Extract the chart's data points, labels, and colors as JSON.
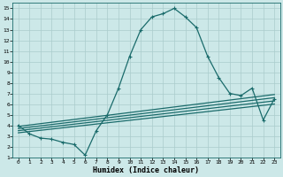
{
  "xlabel": "Humidex (Indice chaleur)",
  "xlim": [
    -0.5,
    23.5
  ],
  "ylim": [
    1,
    15.5
  ],
  "yticks": [
    1,
    2,
    3,
    4,
    5,
    6,
    7,
    8,
    9,
    10,
    11,
    12,
    13,
    14,
    15
  ],
  "xticks": [
    0,
    1,
    2,
    3,
    4,
    5,
    6,
    7,
    8,
    9,
    10,
    11,
    12,
    13,
    14,
    15,
    16,
    17,
    18,
    19,
    20,
    21,
    22,
    23
  ],
  "bg_color": "#cce8e8",
  "grid_color": "#aacccc",
  "line_color": "#1a6b6b",
  "line_width": 0.9,
  "marker": "+",
  "marker_size": 3.5,
  "lines": [
    {
      "x": [
        0,
        1,
        2,
        3,
        4,
        5,
        6,
        7,
        8,
        9,
        10,
        11,
        12,
        13,
        14,
        15,
        16,
        17,
        18,
        19,
        20,
        21,
        22,
        23
      ],
      "y": [
        4.0,
        3.2,
        2.8,
        2.7,
        2.4,
        2.2,
        1.2,
        3.5,
        5.0,
        7.5,
        10.5,
        13.0,
        14.2,
        14.5,
        15.0,
        14.2,
        13.2,
        10.5,
        8.5,
        7.0,
        6.8,
        7.5,
        4.5,
        6.5
      ],
      "has_markers": true
    },
    {
      "x": [
        0,
        23
      ],
      "y": [
        3.9,
        6.9
      ],
      "has_markers": false
    },
    {
      "x": [
        0,
        23
      ],
      "y": [
        3.7,
        6.6
      ],
      "has_markers": false
    },
    {
      "x": [
        0,
        23
      ],
      "y": [
        3.5,
        6.3
      ],
      "has_markers": false
    },
    {
      "x": [
        0,
        23
      ],
      "y": [
        3.3,
        6.0
      ],
      "has_markers": false
    }
  ],
  "tick_fontsize": 4.5,
  "xlabel_fontsize": 6.0
}
